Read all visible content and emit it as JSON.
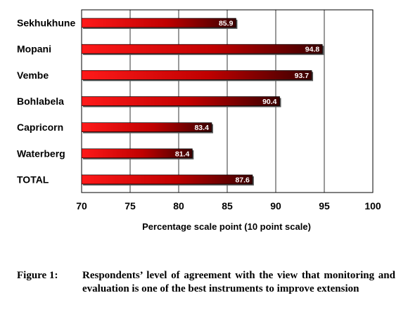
{
  "chart_data": {
    "type": "bar",
    "orientation": "horizontal",
    "categories": [
      "Sekhukhune",
      "Mopani",
      "Vembe",
      "Bohlabela",
      "Capricorn",
      "Waterberg",
      "TOTAL"
    ],
    "values": [
      85.9,
      94.8,
      93.7,
      90.4,
      83.4,
      81.4,
      87.6
    ],
    "value_labels": [
      "85.9",
      "94.8",
      "93.7",
      "90.4",
      "83.4",
      "81.4",
      "87.6"
    ],
    "xlabel": "Percentage scale point (10 point scale)",
    "ylabel": "",
    "xlim": [
      70,
      100
    ],
    "xticks": [
      70,
      75,
      80,
      85,
      90,
      95,
      100
    ],
    "xtick_labels": [
      "70",
      "75",
      "80",
      "85",
      "90",
      "95",
      "100"
    ],
    "grid": "vertical",
    "bar_colors": {
      "start": "#ff1a1a",
      "end": "#3a0000"
    }
  },
  "caption": {
    "label": "Figure 1:",
    "text": "Respondents’ level of agreement with the view that monitoring and evaluation is one of the best instruments to improve extension"
  }
}
